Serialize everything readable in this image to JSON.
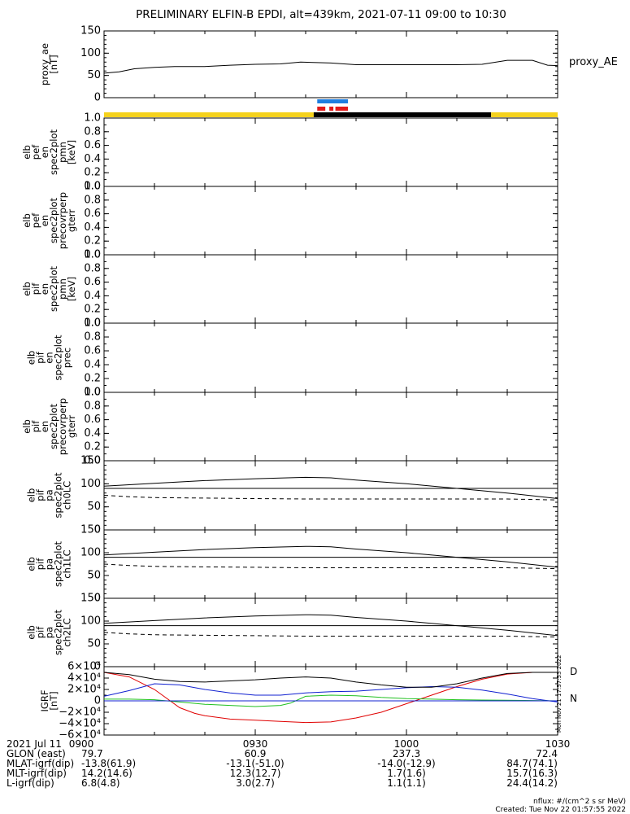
{
  "title": "PRELIMINARY ELFIN-B EPDI, alt=439km, 2021-07-11 09:00 to 10:30",
  "colors": {
    "yellow": "#f5d21c",
    "black": "#000000",
    "blue": "#1e7ee0",
    "red": "#e01a1a",
    "green": "#1ec81e",
    "grfRed": "#e00000",
    "grfBlue": "#1020d0",
    "grfGreen": "#20c020",
    "grfD": "#c00000",
    "grfN": "#00a000"
  },
  "time_axis": {
    "start": "09:00",
    "end": "10:30",
    "ticks": [
      "0900",
      "0930",
      "1000",
      "1030"
    ]
  },
  "footer": {
    "rows": [
      {
        "label": "2021 Jul 11",
        "values": [
          "0900",
          "0930",
          "1000",
          "1030"
        ]
      },
      {
        "label": "GLON (east)",
        "values": [
          "79.7",
          "60.9",
          "237.3",
          "72.4"
        ]
      },
      {
        "label": "MLAT-igrf(dip)",
        "values": [
          "-13.8(61.9)",
          "-13.1(-51.0)",
          "-14.0(-12.9)",
          "84.7(74.1)"
        ]
      },
      {
        "label": "MLT-igrf(dip)",
        "values": [
          "14.2(14.6)",
          "12.3(12.7)",
          "1.7(1.6)",
          "15.7(16.3)"
        ]
      },
      {
        "label": "L-igrf(dip)",
        "values": [
          "6.8(4.8)",
          "3.0(2.7)",
          "1.1(1.1)",
          "24.4(14.2)"
        ]
      }
    ],
    "nflux": "nflux: #/(cm^2 s sr MeV)",
    "created": "Created: Tue Nov 22 01:57:55 2022",
    "side_stamp": "Mon Nov 21 17:57:53 2022"
  },
  "chart_data": [
    {
      "type": "line",
      "name": "proxy_ae",
      "ylabel": [
        "proxy_ae",
        "[nT]"
      ],
      "right_label": "proxy_AE",
      "ylim": [
        0,
        150
      ],
      "yticks": [
        "150",
        "100",
        "50",
        "0"
      ],
      "x": [
        0,
        3,
        6,
        10,
        14,
        20,
        25,
        30,
        35,
        39,
        45,
        50,
        55,
        60,
        62,
        65,
        70,
        75,
        80,
        85,
        88,
        90
      ],
      "values": [
        55,
        58,
        65,
        68,
        70,
        70,
        73,
        75,
        76,
        80,
        78,
        74,
        74,
        74,
        74,
        74,
        74,
        75,
        84,
        84,
        73,
        72
      ]
    },
    {
      "type": "bar",
      "name": "orbit_bars",
      "bars": [
        {
          "row": "blue",
          "color": "blue",
          "from": 42.3,
          "to": 48.4
        },
        {
          "row": "red",
          "color": "red",
          "from": 42.3,
          "to": 43.9
        },
        {
          "row": "red",
          "color": "red",
          "from": 44.7,
          "to": 45.5
        },
        {
          "row": "red",
          "color": "red",
          "from": 45.9,
          "to": 48.4
        },
        {
          "row": "bar",
          "color": "yellow",
          "from": 0,
          "to": 41.6
        },
        {
          "row": "bar",
          "color": "black",
          "from": 41.6,
          "to": 76.8
        },
        {
          "row": "bar",
          "color": "yellow",
          "from": 76.8,
          "to": 90
        }
      ]
    },
    {
      "type": "line",
      "name": "pef_en",
      "ylabel": [
        "elb",
        "pef",
        "en",
        "spec2plot",
        "pmn",
        "[keV]"
      ],
      "ylim": [
        0,
        1
      ],
      "yticks": [
        "1.0",
        "0.8",
        "0.6",
        "0.4",
        "0.2",
        "0.0"
      ],
      "series": []
    },
    {
      "type": "line",
      "name": "pef_precovrperp",
      "ylabel": [
        "elb",
        "pef",
        "en",
        "spec2plot",
        "precovrperp",
        "gterr"
      ],
      "ylim": [
        0,
        1
      ],
      "yticks": [
        "1.0",
        "0.8",
        "0.6",
        "0.4",
        "0.2",
        "0.0"
      ],
      "series": []
    },
    {
      "type": "line",
      "name": "pif_en",
      "ylabel": [
        "elb",
        "pif",
        "en",
        "spec2plot",
        "pmn",
        "[keV]"
      ],
      "ylim": [
        0,
        1
      ],
      "yticks": [
        "1.0",
        "0.8",
        "0.6",
        "0.4",
        "0.2",
        "0.0"
      ],
      "series": []
    },
    {
      "type": "line",
      "name": "pif_prec",
      "ylabel": [
        "elb",
        "pif",
        "en",
        "spec2plot",
        "prec"
      ],
      "ylim": [
        0,
        1
      ],
      "yticks": [
        "1.0",
        "0.8",
        "0.6",
        "0.4",
        "0.2",
        "0.0"
      ],
      "series": []
    },
    {
      "type": "line",
      "name": "pif_precovrperp",
      "ylabel": [
        "elb",
        "pif",
        "en",
        "spec2plot",
        "precovrperp",
        "gterr"
      ],
      "ylim": [
        0,
        1
      ],
      "yticks": [
        "1.0",
        "0.8",
        "0.6",
        "0.4",
        "0.2",
        "0.0"
      ],
      "series": []
    },
    {
      "type": "line",
      "name": "ch0LC",
      "ylabel": [
        "elb",
        "pif",
        "pa",
        "spec2plot",
        "ch0LC"
      ],
      "ylim": [
        0,
        150
      ],
      "yticks": [
        "150",
        "100",
        "50",
        "0"
      ],
      "hline": 90,
      "series": [
        {
          "style": "solid",
          "x": [
            0,
            10,
            20,
            30,
            40,
            45,
            50,
            60,
            70,
            80,
            90
          ],
          "values": [
            95,
            101,
            107,
            111,
            114,
            113,
            108,
            100,
            90,
            80,
            68
          ]
        },
        {
          "style": "dashed",
          "x": [
            0,
            5,
            10,
            20,
            30,
            40,
            50,
            60,
            70,
            80,
            90
          ],
          "values": [
            75,
            72,
            70,
            69,
            68,
            67,
            67,
            67,
            67,
            67,
            65
          ]
        }
      ]
    },
    {
      "type": "line",
      "name": "ch1LC",
      "ylabel": [
        "elb",
        "pif",
        "pa",
        "spec2plot",
        "ch1LC"
      ],
      "ylim": [
        0,
        150
      ],
      "yticks": [
        "150",
        "100",
        "50",
        "0"
      ],
      "hline": 90,
      "series": [
        {
          "style": "solid",
          "x": [
            0,
            10,
            20,
            30,
            40,
            45,
            50,
            60,
            70,
            80,
            90
          ],
          "values": [
            95,
            101,
            107,
            111,
            114,
            113,
            108,
            100,
            90,
            80,
            68
          ]
        },
        {
          "style": "dashed",
          "x": [
            0,
            5,
            10,
            20,
            30,
            40,
            50,
            60,
            70,
            80,
            90
          ],
          "values": [
            75,
            72,
            70,
            69,
            68,
            67,
            67,
            67,
            67,
            67,
            65
          ]
        }
      ]
    },
    {
      "type": "line",
      "name": "ch2LC",
      "ylabel": [
        "elb",
        "pif",
        "pa",
        "spec2plot",
        "ch2LC"
      ],
      "ylim": [
        0,
        150
      ],
      "yticks": [
        "150",
        "100",
        "50",
        "0"
      ],
      "hline": 90,
      "series": [
        {
          "style": "solid",
          "x": [
            0,
            10,
            20,
            30,
            40,
            45,
            50,
            60,
            70,
            80,
            90
          ],
          "values": [
            95,
            101,
            107,
            111,
            114,
            113,
            108,
            100,
            90,
            80,
            68
          ]
        },
        {
          "style": "dashed",
          "x": [
            0,
            5,
            10,
            20,
            30,
            40,
            50,
            60,
            70,
            80,
            90
          ],
          "values": [
            75,
            72,
            70,
            69,
            68,
            67,
            67,
            67,
            67,
            67,
            65
          ]
        }
      ]
    },
    {
      "type": "line",
      "name": "IGRF",
      "ylabel": [
        "IGRF",
        "[nT]"
      ],
      "ylim": [
        -60000,
        60000
      ],
      "ytick_values": [
        60000,
        40000,
        20000,
        0,
        -20000,
        -40000,
        -60000
      ],
      "yticks": [
        "6×10⁴",
        "4×10⁴",
        "2×10⁴",
        "0",
        "−2×10⁴",
        "−4×10⁴",
        "−6×10⁴"
      ],
      "legend": [
        "D",
        "N"
      ],
      "series": [
        {
          "color": "grfRed",
          "x": [
            0,
            5,
            10,
            15,
            18,
            20,
            25,
            30,
            35,
            40,
            45,
            50,
            55,
            60,
            65,
            70,
            75,
            80,
            85,
            90
          ],
          "values": [
            50000,
            42000,
            20000,
            -12000,
            -22000,
            -26000,
            -32000,
            -34000,
            -36000,
            -38000,
            -37000,
            -30000,
            -20000,
            -5000,
            10000,
            25000,
            38000,
            47000,
            50000,
            50000
          ]
        },
        {
          "color": "grfBlue",
          "x": [
            0,
            5,
            10,
            15,
            20,
            25,
            30,
            35,
            40,
            45,
            50,
            55,
            60,
            65,
            70,
            75,
            80,
            85,
            90
          ],
          "values": [
            8000,
            18000,
            30000,
            28000,
            20000,
            14000,
            10000,
            10000,
            14000,
            16000,
            17000,
            20000,
            23000,
            25000,
            24000,
            19000,
            12000,
            4000,
            -2000
          ]
        },
        {
          "color": "black",
          "x": [
            0,
            5,
            10,
            15,
            20,
            25,
            30,
            35,
            40,
            45,
            50,
            55,
            60,
            65,
            70,
            75,
            80,
            85,
            90
          ],
          "values": [
            50000,
            46000,
            38000,
            34000,
            33000,
            35000,
            37000,
            40000,
            42000,
            40000,
            33000,
            28000,
            24000,
            24000,
            30000,
            40000,
            48000,
            50000,
            50000
          ]
        },
        {
          "color": "grfGreen",
          "x": [
            0,
            5,
            10,
            15,
            20,
            25,
            30,
            35,
            37,
            40,
            45,
            50,
            55,
            60,
            65,
            70,
            75,
            80,
            85,
            90
          ],
          "values": [
            3000,
            3000,
            2000,
            -2000,
            -6000,
            -8000,
            -10000,
            -8000,
            -4000,
            8000,
            10000,
            9000,
            6000,
            4000,
            3000,
            2000,
            1500,
            1000,
            500,
            0
          ]
        },
        {
          "color": "grfBlue",
          "x": [
            0,
            90
          ],
          "values": [
            0,
            0
          ]
        }
      ]
    }
  ]
}
